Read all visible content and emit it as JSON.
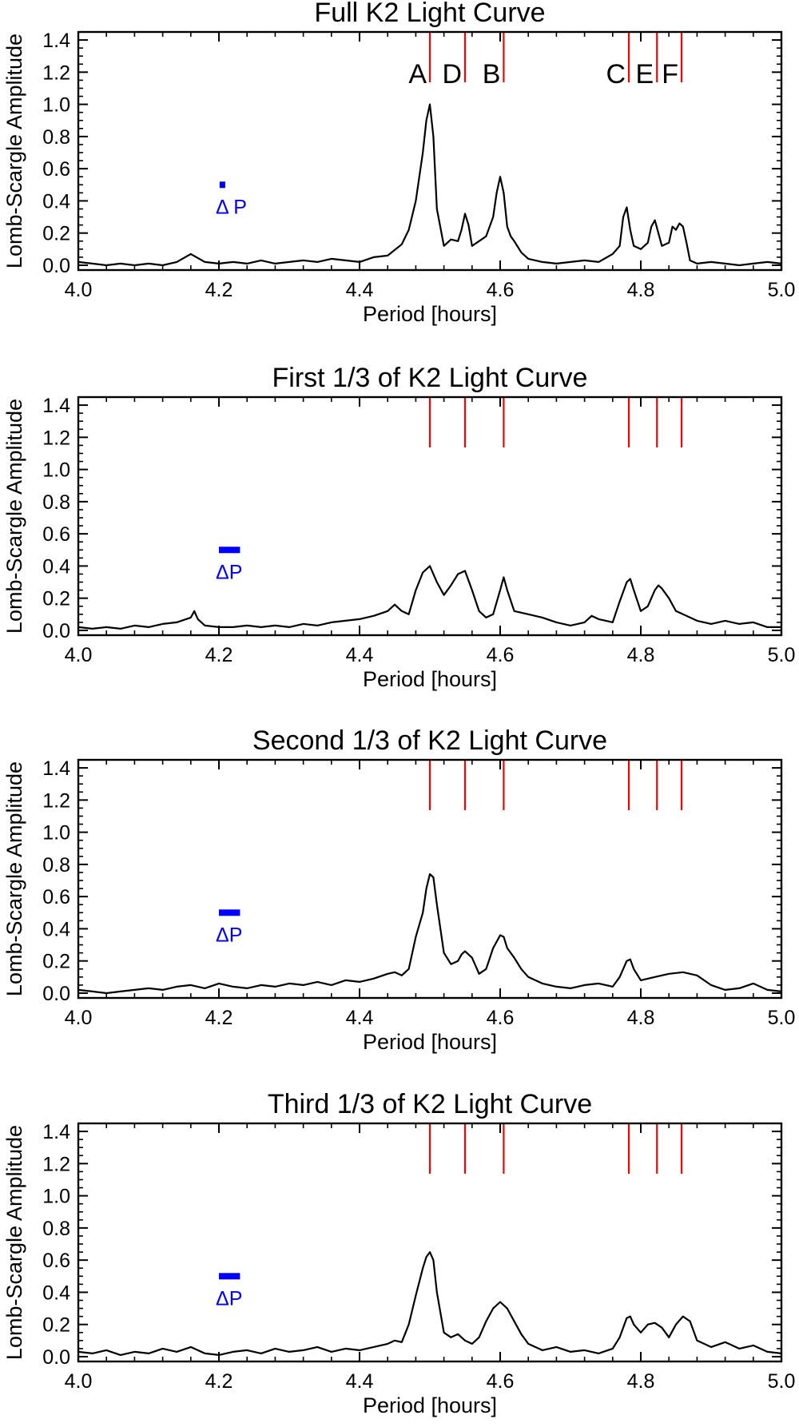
{
  "chart_data": [
    {
      "type": "line",
      "title": "Full K2 Light Curve",
      "xlabel": "Period [hours]",
      "ylabel": "Lomb-Scargle Amplitude",
      "xlim": [
        4.0,
        5.0
      ],
      "ylim": [
        -0.03,
        1.45
      ],
      "xticks": [
        "4.0",
        "4.2",
        "4.4",
        "4.6",
        "4.8",
        "5.0"
      ],
      "yticks": [
        "0.0",
        "0.2",
        "0.4",
        "0.6",
        "0.8",
        "1.0",
        "1.2",
        "1.4"
      ],
      "marker_periods": [
        4.5,
        4.55,
        4.605,
        4.783,
        4.823,
        4.858
      ],
      "marker_labels": [
        "A",
        "D",
        "B",
        "C",
        "E",
        "F"
      ],
      "delta_p": {
        "label": "Δ P",
        "center": 4.205,
        "width": 0.008,
        "y": 0.5
      },
      "series": [
        {
          "name": "Full K2 Light Curve",
          "x": [
            4.0,
            4.02,
            4.04,
            4.06,
            4.08,
            4.1,
            4.12,
            4.14,
            4.16,
            4.18,
            4.2,
            4.22,
            4.24,
            4.26,
            4.28,
            4.3,
            4.32,
            4.34,
            4.36,
            4.38,
            4.4,
            4.42,
            4.44,
            4.46,
            4.47,
            4.48,
            4.49,
            4.495,
            4.5,
            4.505,
            4.51,
            4.52,
            4.53,
            4.54,
            4.545,
            4.55,
            4.555,
            4.56,
            4.57,
            4.58,
            4.59,
            4.595,
            4.6,
            4.605,
            4.61,
            4.615,
            4.62,
            4.63,
            4.64,
            4.66,
            4.68,
            4.7,
            4.72,
            4.74,
            4.76,
            4.77,
            4.775,
            4.78,
            4.785,
            4.79,
            4.8,
            4.81,
            4.815,
            4.82,
            4.825,
            4.83,
            4.84,
            4.845,
            4.85,
            4.855,
            4.86,
            4.865,
            4.87,
            4.88,
            4.9,
            4.92,
            4.94,
            4.96,
            4.98,
            5.0
          ],
          "y": [
            0.02,
            0.01,
            0.0,
            0.01,
            0.0,
            0.01,
            0.0,
            0.02,
            0.07,
            0.02,
            0.01,
            0.02,
            0.01,
            0.03,
            0.01,
            0.02,
            0.03,
            0.02,
            0.04,
            0.03,
            0.02,
            0.05,
            0.06,
            0.13,
            0.22,
            0.4,
            0.7,
            0.9,
            1.0,
            0.8,
            0.35,
            0.12,
            0.16,
            0.15,
            0.22,
            0.32,
            0.25,
            0.12,
            0.15,
            0.18,
            0.3,
            0.45,
            0.55,
            0.45,
            0.24,
            0.18,
            0.15,
            0.08,
            0.04,
            0.02,
            0.01,
            0.02,
            0.03,
            0.02,
            0.07,
            0.12,
            0.3,
            0.36,
            0.22,
            0.12,
            0.1,
            0.14,
            0.24,
            0.28,
            0.2,
            0.12,
            0.14,
            0.24,
            0.22,
            0.26,
            0.24,
            0.14,
            0.03,
            0.01,
            0.02,
            0.01,
            0.0,
            0.01,
            0.02,
            0.01
          ]
        }
      ]
    },
    {
      "type": "line",
      "title": "First 1/3 of K2 Light Curve",
      "xlabel": "Period [hours]",
      "ylabel": "Lomb-Scargle Amplitude",
      "xlim": [
        4.0,
        5.0
      ],
      "ylim": [
        -0.03,
        1.45
      ],
      "xticks": [
        "4.0",
        "4.2",
        "4.4",
        "4.6",
        "4.8",
        "5.0"
      ],
      "yticks": [
        "0.0",
        "0.2",
        "0.4",
        "0.6",
        "0.8",
        "1.0",
        "1.2",
        "1.4"
      ],
      "marker_periods": [
        4.5,
        4.55,
        4.605,
        4.783,
        4.823,
        4.858
      ],
      "delta_p": {
        "label": "ΔP",
        "center": 4.215,
        "width": 0.03,
        "y": 0.5
      },
      "series": [
        {
          "name": "First 1/3 of K2 Light Curve",
          "x": [
            4.0,
            4.02,
            4.04,
            4.06,
            4.08,
            4.1,
            4.12,
            4.14,
            4.16,
            4.165,
            4.17,
            4.18,
            4.2,
            4.22,
            4.24,
            4.26,
            4.28,
            4.3,
            4.32,
            4.34,
            4.36,
            4.38,
            4.4,
            4.42,
            4.44,
            4.45,
            4.46,
            4.47,
            4.48,
            4.49,
            4.5,
            4.51,
            4.52,
            4.53,
            4.54,
            4.55,
            4.56,
            4.57,
            4.58,
            4.59,
            4.6,
            4.605,
            4.61,
            4.62,
            4.64,
            4.66,
            4.68,
            4.7,
            4.72,
            4.73,
            4.74,
            4.76,
            4.77,
            4.78,
            4.785,
            4.79,
            4.8,
            4.81,
            4.82,
            4.825,
            4.83,
            4.84,
            4.85,
            4.86,
            4.88,
            4.9,
            4.92,
            4.94,
            4.96,
            4.98,
            5.0
          ],
          "y": [
            0.02,
            0.01,
            0.02,
            0.01,
            0.03,
            0.02,
            0.04,
            0.05,
            0.08,
            0.12,
            0.07,
            0.03,
            0.02,
            0.02,
            0.03,
            0.02,
            0.03,
            0.02,
            0.04,
            0.03,
            0.05,
            0.06,
            0.07,
            0.09,
            0.12,
            0.16,
            0.12,
            0.1,
            0.25,
            0.36,
            0.4,
            0.3,
            0.22,
            0.28,
            0.35,
            0.37,
            0.25,
            0.12,
            0.08,
            0.1,
            0.25,
            0.33,
            0.25,
            0.12,
            0.1,
            0.08,
            0.05,
            0.03,
            0.05,
            0.09,
            0.07,
            0.05,
            0.18,
            0.3,
            0.32,
            0.25,
            0.12,
            0.15,
            0.25,
            0.28,
            0.26,
            0.2,
            0.12,
            0.1,
            0.06,
            0.04,
            0.06,
            0.04,
            0.05,
            0.02,
            0.02
          ]
        }
      ]
    },
    {
      "type": "line",
      "title": "Second 1/3 of K2 Light Curve",
      "xlabel": "Period [hours]",
      "ylabel": "Lomb-Scargle Amplitude",
      "xlim": [
        4.0,
        5.0
      ],
      "ylim": [
        -0.03,
        1.45
      ],
      "xticks": [
        "4.0",
        "4.2",
        "4.4",
        "4.6",
        "4.8",
        "5.0"
      ],
      "yticks": [
        "0.0",
        "0.2",
        "0.4",
        "0.6",
        "0.8",
        "1.0",
        "1.2",
        "1.4"
      ],
      "marker_periods": [
        4.5,
        4.55,
        4.605,
        4.783,
        4.823,
        4.858
      ],
      "delta_p": {
        "label": "ΔP",
        "center": 4.215,
        "width": 0.03,
        "y": 0.5
      },
      "series": [
        {
          "name": "Second 1/3 of K2 Light Curve",
          "x": [
            4.0,
            4.02,
            4.04,
            4.06,
            4.08,
            4.1,
            4.12,
            4.14,
            4.16,
            4.18,
            4.2,
            4.22,
            4.24,
            4.26,
            4.28,
            4.3,
            4.32,
            4.34,
            4.36,
            4.38,
            4.4,
            4.42,
            4.44,
            4.45,
            4.46,
            4.47,
            4.48,
            4.49,
            4.495,
            4.5,
            4.505,
            4.51,
            4.52,
            4.53,
            4.54,
            4.545,
            4.55,
            4.56,
            4.57,
            4.58,
            4.59,
            4.6,
            4.605,
            4.61,
            4.62,
            4.63,
            4.64,
            4.66,
            4.68,
            4.7,
            4.72,
            4.74,
            4.76,
            4.77,
            4.78,
            4.785,
            4.79,
            4.8,
            4.82,
            4.84,
            4.86,
            4.88,
            4.9,
            4.92,
            4.94,
            4.96,
            4.98,
            5.0
          ],
          "y": [
            0.02,
            0.01,
            0.0,
            0.01,
            0.02,
            0.03,
            0.02,
            0.04,
            0.05,
            0.03,
            0.06,
            0.04,
            0.03,
            0.05,
            0.04,
            0.06,
            0.05,
            0.07,
            0.05,
            0.08,
            0.07,
            0.09,
            0.12,
            0.13,
            0.11,
            0.15,
            0.35,
            0.5,
            0.65,
            0.74,
            0.72,
            0.55,
            0.25,
            0.18,
            0.2,
            0.24,
            0.26,
            0.22,
            0.12,
            0.15,
            0.28,
            0.36,
            0.35,
            0.28,
            0.22,
            0.15,
            0.1,
            0.06,
            0.04,
            0.03,
            0.05,
            0.06,
            0.04,
            0.1,
            0.2,
            0.21,
            0.15,
            0.08,
            0.1,
            0.12,
            0.13,
            0.11,
            0.05,
            0.02,
            0.03,
            0.06,
            0.02,
            0.01
          ]
        }
      ]
    },
    {
      "type": "line",
      "title": "Third 1/3 of K2 Light Curve",
      "xlabel": "Period [hours]",
      "ylabel": "Lomb-Scargle Amplitude",
      "xlim": [
        4.0,
        5.0
      ],
      "ylim": [
        -0.03,
        1.45
      ],
      "xticks": [
        "4.0",
        "4.2",
        "4.4",
        "4.6",
        "4.8",
        "5.0"
      ],
      "yticks": [
        "0.0",
        "0.2",
        "0.4",
        "0.6",
        "0.8",
        "1.0",
        "1.2",
        "1.4"
      ],
      "marker_periods": [
        4.5,
        4.55,
        4.605,
        4.783,
        4.823,
        4.858
      ],
      "delta_p": {
        "label": "ΔP",
        "center": 4.215,
        "width": 0.03,
        "y": 0.5
      },
      "series": [
        {
          "name": "Third 1/3 of K2 Light Curve",
          "x": [
            4.0,
            4.02,
            4.04,
            4.06,
            4.08,
            4.1,
            4.12,
            4.14,
            4.16,
            4.18,
            4.2,
            4.22,
            4.24,
            4.26,
            4.28,
            4.3,
            4.32,
            4.34,
            4.36,
            4.38,
            4.4,
            4.42,
            4.44,
            4.45,
            4.46,
            4.47,
            4.48,
            4.49,
            4.495,
            4.5,
            4.505,
            4.51,
            4.52,
            4.53,
            4.54,
            4.55,
            4.56,
            4.57,
            4.58,
            4.59,
            4.6,
            4.61,
            4.62,
            4.63,
            4.64,
            4.66,
            4.68,
            4.7,
            4.72,
            4.74,
            4.76,
            4.77,
            4.78,
            4.785,
            4.79,
            4.8,
            4.81,
            4.82,
            4.83,
            4.84,
            4.85,
            4.86,
            4.87,
            4.88,
            4.9,
            4.92,
            4.94,
            4.96,
            4.98,
            5.0
          ],
          "y": [
            0.03,
            0.02,
            0.04,
            0.01,
            0.03,
            0.02,
            0.05,
            0.03,
            0.06,
            0.02,
            0.01,
            0.03,
            0.04,
            0.02,
            0.05,
            0.03,
            0.04,
            0.06,
            0.03,
            0.05,
            0.04,
            0.06,
            0.08,
            0.1,
            0.09,
            0.2,
            0.38,
            0.55,
            0.62,
            0.65,
            0.6,
            0.4,
            0.15,
            0.12,
            0.14,
            0.1,
            0.08,
            0.12,
            0.22,
            0.3,
            0.34,
            0.3,
            0.22,
            0.14,
            0.08,
            0.04,
            0.06,
            0.03,
            0.04,
            0.02,
            0.05,
            0.12,
            0.24,
            0.25,
            0.2,
            0.15,
            0.2,
            0.21,
            0.18,
            0.12,
            0.2,
            0.25,
            0.22,
            0.1,
            0.06,
            0.09,
            0.05,
            0.07,
            0.03,
            0.02
          ]
        }
      ]
    }
  ]
}
